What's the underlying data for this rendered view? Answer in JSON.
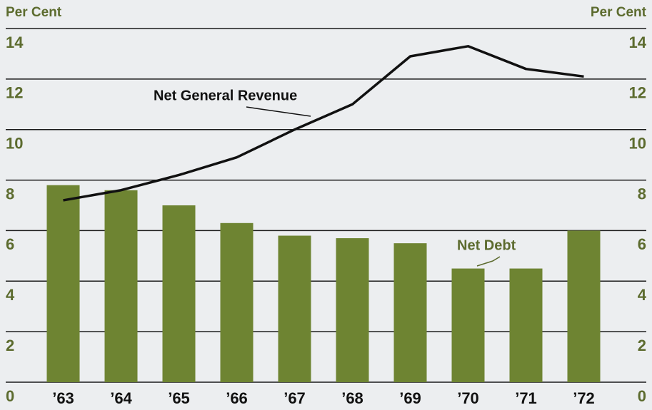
{
  "chart_data": {
    "type": "bar",
    "y_label": "Per Cent",
    "categories": [
      "’63",
      "’64",
      "’65",
      "’66",
      "’67",
      "’68",
      "’69",
      "’70",
      "’71",
      "’72"
    ],
    "series": [
      {
        "name": "Net Debt",
        "type": "bar",
        "color": "#6e8432",
        "values": [
          7.8,
          7.6,
          7.0,
          6.3,
          5.8,
          5.7,
          5.5,
          4.5,
          4.5,
          6.0
        ]
      },
      {
        "name": "Net General Revenue",
        "type": "line",
        "color": "#111111",
        "values": [
          7.2,
          7.6,
          8.2,
          8.9,
          10.0,
          11.0,
          12.9,
          13.3,
          12.4,
          12.1
        ]
      }
    ],
    "ylim": [
      0,
      14
    ],
    "yticks": [
      0,
      2,
      4,
      6,
      8,
      10,
      12,
      14
    ],
    "grid": true
  }
}
